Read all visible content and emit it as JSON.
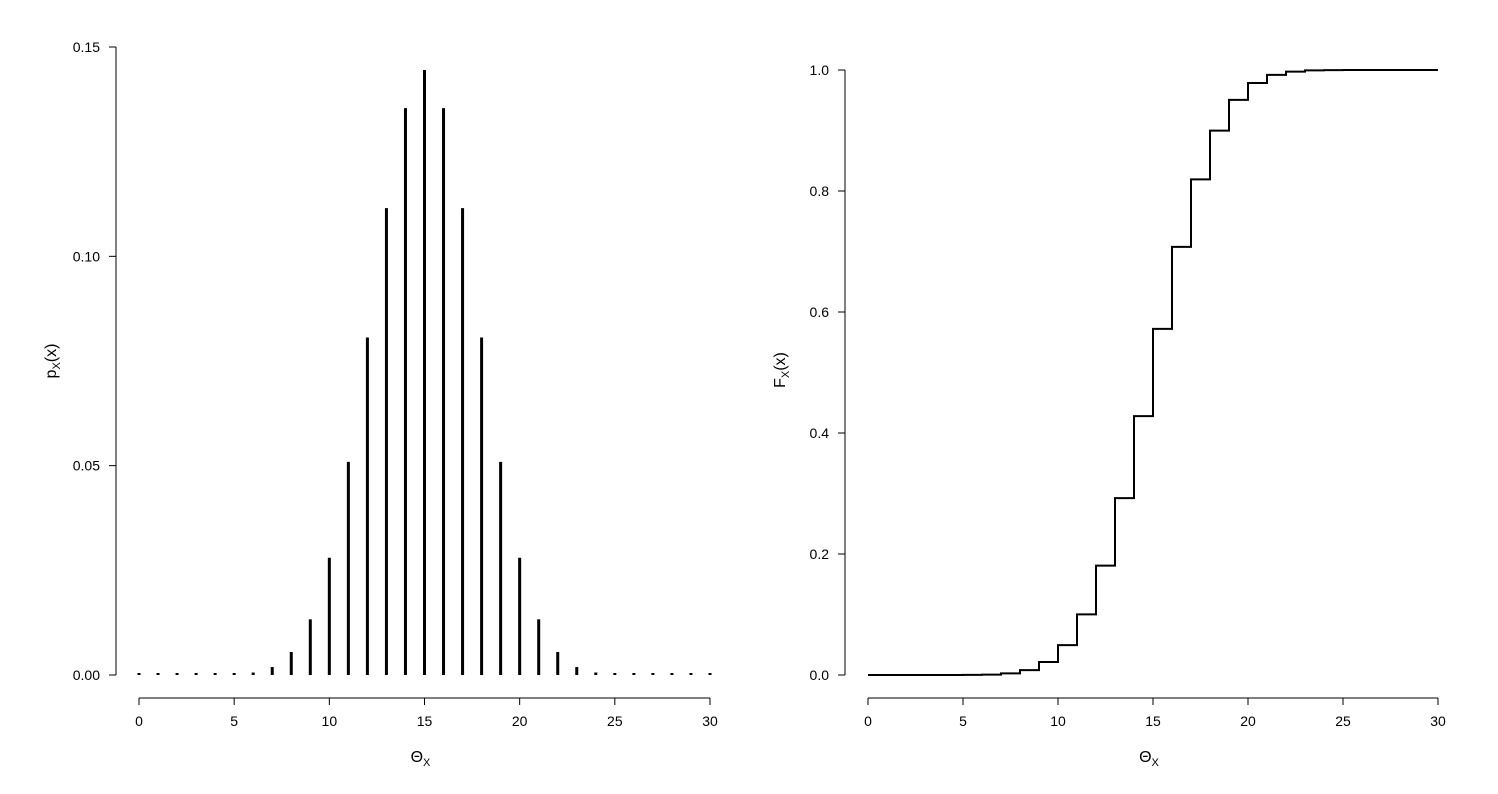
{
  "chart_data": [
    {
      "type": "bar",
      "plot_style": "stem (vertical lines)",
      "xlabel": {
        "main": "Θ",
        "sub": "X"
      },
      "ylabel": {
        "main": "p",
        "sub": "X",
        "suffix": "(x)"
      },
      "xlim": [
        0,
        30
      ],
      "ylim": [
        0,
        0.15
      ],
      "xticks": [
        0,
        5,
        10,
        15,
        20,
        25,
        30
      ],
      "yticks": [
        0.0,
        0.05,
        0.1,
        0.15
      ],
      "ytick_labels": [
        "0.00",
        "0.05",
        "0.10",
        "0.15"
      ],
      "grid": false,
      "x": [
        0,
        1,
        2,
        3,
        4,
        5,
        6,
        7,
        8,
        9,
        10,
        11,
        12,
        13,
        14,
        15,
        16,
        17,
        18,
        19,
        20,
        21,
        22,
        23,
        24,
        25,
        26,
        27,
        28,
        29,
        30
      ],
      "values": [
        0.0,
        0.0,
        0.0,
        0.0,
        0.0,
        0.0001,
        0.0006,
        0.0019,
        0.0055,
        0.0133,
        0.028,
        0.0509,
        0.0806,
        0.1115,
        0.1354,
        0.1445,
        0.1354,
        0.1115,
        0.0806,
        0.0509,
        0.028,
        0.0133,
        0.0055,
        0.0019,
        0.0006,
        0.0001,
        0.0,
        0.0,
        0.0,
        0.0,
        0.0
      ]
    },
    {
      "type": "line",
      "plot_style": "step",
      "xlabel": {
        "main": "Θ",
        "sub": "X"
      },
      "ylabel": {
        "main": "F",
        "sub": "X",
        "suffix": "(x)"
      },
      "xlim": [
        0,
        30
      ],
      "ylim": [
        0,
        1.0
      ],
      "xticks": [
        0,
        5,
        10,
        15,
        20,
        25,
        30
      ],
      "yticks": [
        0.0,
        0.2,
        0.4,
        0.6,
        0.8,
        1.0
      ],
      "ytick_labels": [
        "0.0",
        "0.2",
        "0.4",
        "0.6",
        "0.8",
        "1.0"
      ],
      "grid": false,
      "x": [
        0,
        1,
        2,
        3,
        4,
        5,
        6,
        7,
        8,
        9,
        10,
        11,
        12,
        13,
        14,
        15,
        16,
        17,
        18,
        19,
        20,
        21,
        22,
        23,
        24,
        25,
        26,
        27,
        28,
        29,
        30
      ],
      "values": [
        0.0,
        0.0,
        0.0,
        0.0,
        0.0,
        0.0002,
        0.0007,
        0.0026,
        0.0081,
        0.0214,
        0.0494,
        0.1002,
        0.1808,
        0.2923,
        0.4278,
        0.5722,
        0.7077,
        0.8192,
        0.8998,
        0.9506,
        0.9786,
        0.9919,
        0.9974,
        0.9993,
        0.9998,
        1.0,
        1.0,
        1.0,
        1.0,
        1.0,
        1.0
      ]
    }
  ]
}
